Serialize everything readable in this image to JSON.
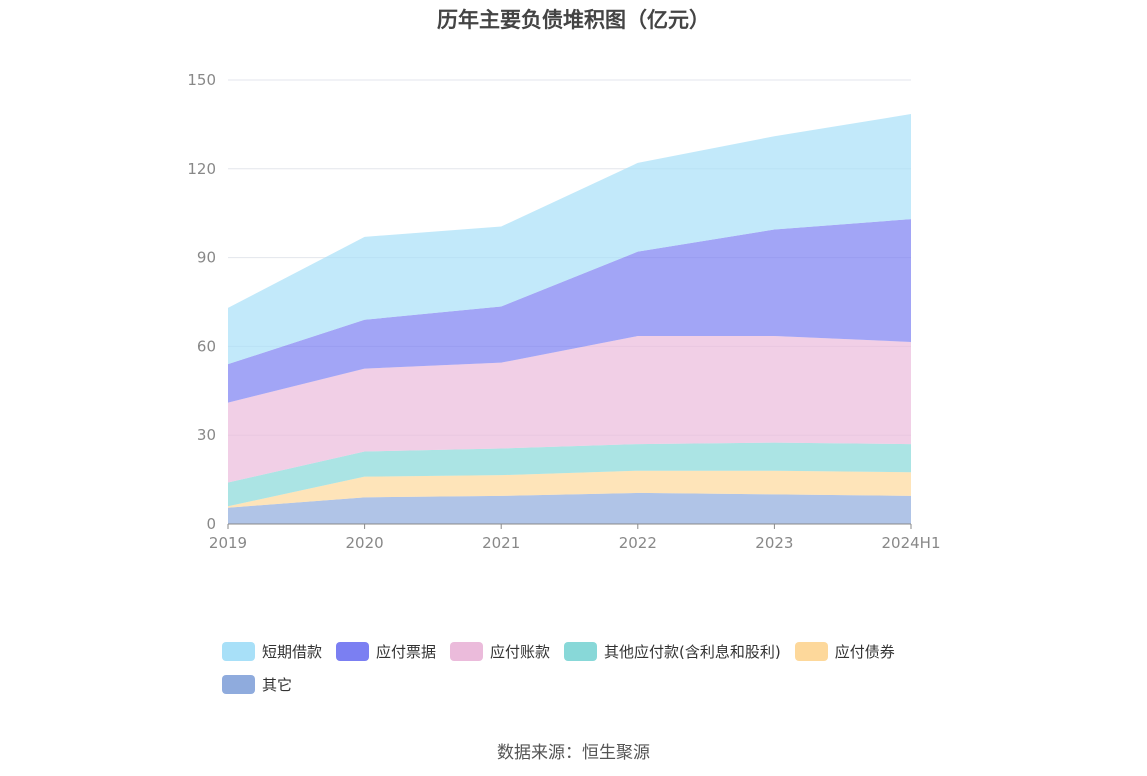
{
  "chart_data": {
    "type": "area",
    "stacked": true,
    "title": "历年主要负债堆积图（亿元）",
    "categories": [
      "2019",
      "2020",
      "2021",
      "2022",
      "2023",
      "2024H1"
    ],
    "y_ticks": [
      "0",
      "30",
      "60",
      "90",
      "120",
      "150"
    ],
    "ylim": [
      0,
      150
    ],
    "grid": true,
    "legend_position": "bottom",
    "series": [
      {
        "name": "其它",
        "color": "#8fabdd",
        "values": [
          5.5,
          9,
          9.5,
          10.5,
          10,
          9.5
        ]
      },
      {
        "name": "应付债券",
        "color": "#fdd89b",
        "values": [
          0.5,
          7,
          7,
          7.5,
          8,
          8
        ]
      },
      {
        "name": "其他应付款(含利息和股利)",
        "color": "#88d8d8",
        "values": [
          8,
          8.5,
          9,
          9,
          9.5,
          9.5
        ]
      },
      {
        "name": "应付账款",
        "color": "#ebbbdb",
        "values": [
          27,
          28,
          29,
          36.5,
          36,
          34.5
        ]
      },
      {
        "name": "应付票据",
        "color": "#7b7ff2",
        "values": [
          13,
          16.5,
          19,
          28.5,
          36,
          41.5
        ]
      },
      {
        "name": "短期借款",
        "color": "#a8e0f8",
        "values": [
          19,
          28,
          27,
          30,
          31.5,
          35.5
        ]
      }
    ]
  },
  "legend_order": [
    5,
    4,
    3,
    2,
    1,
    0
  ],
  "source": "数据来源：恒生聚源"
}
